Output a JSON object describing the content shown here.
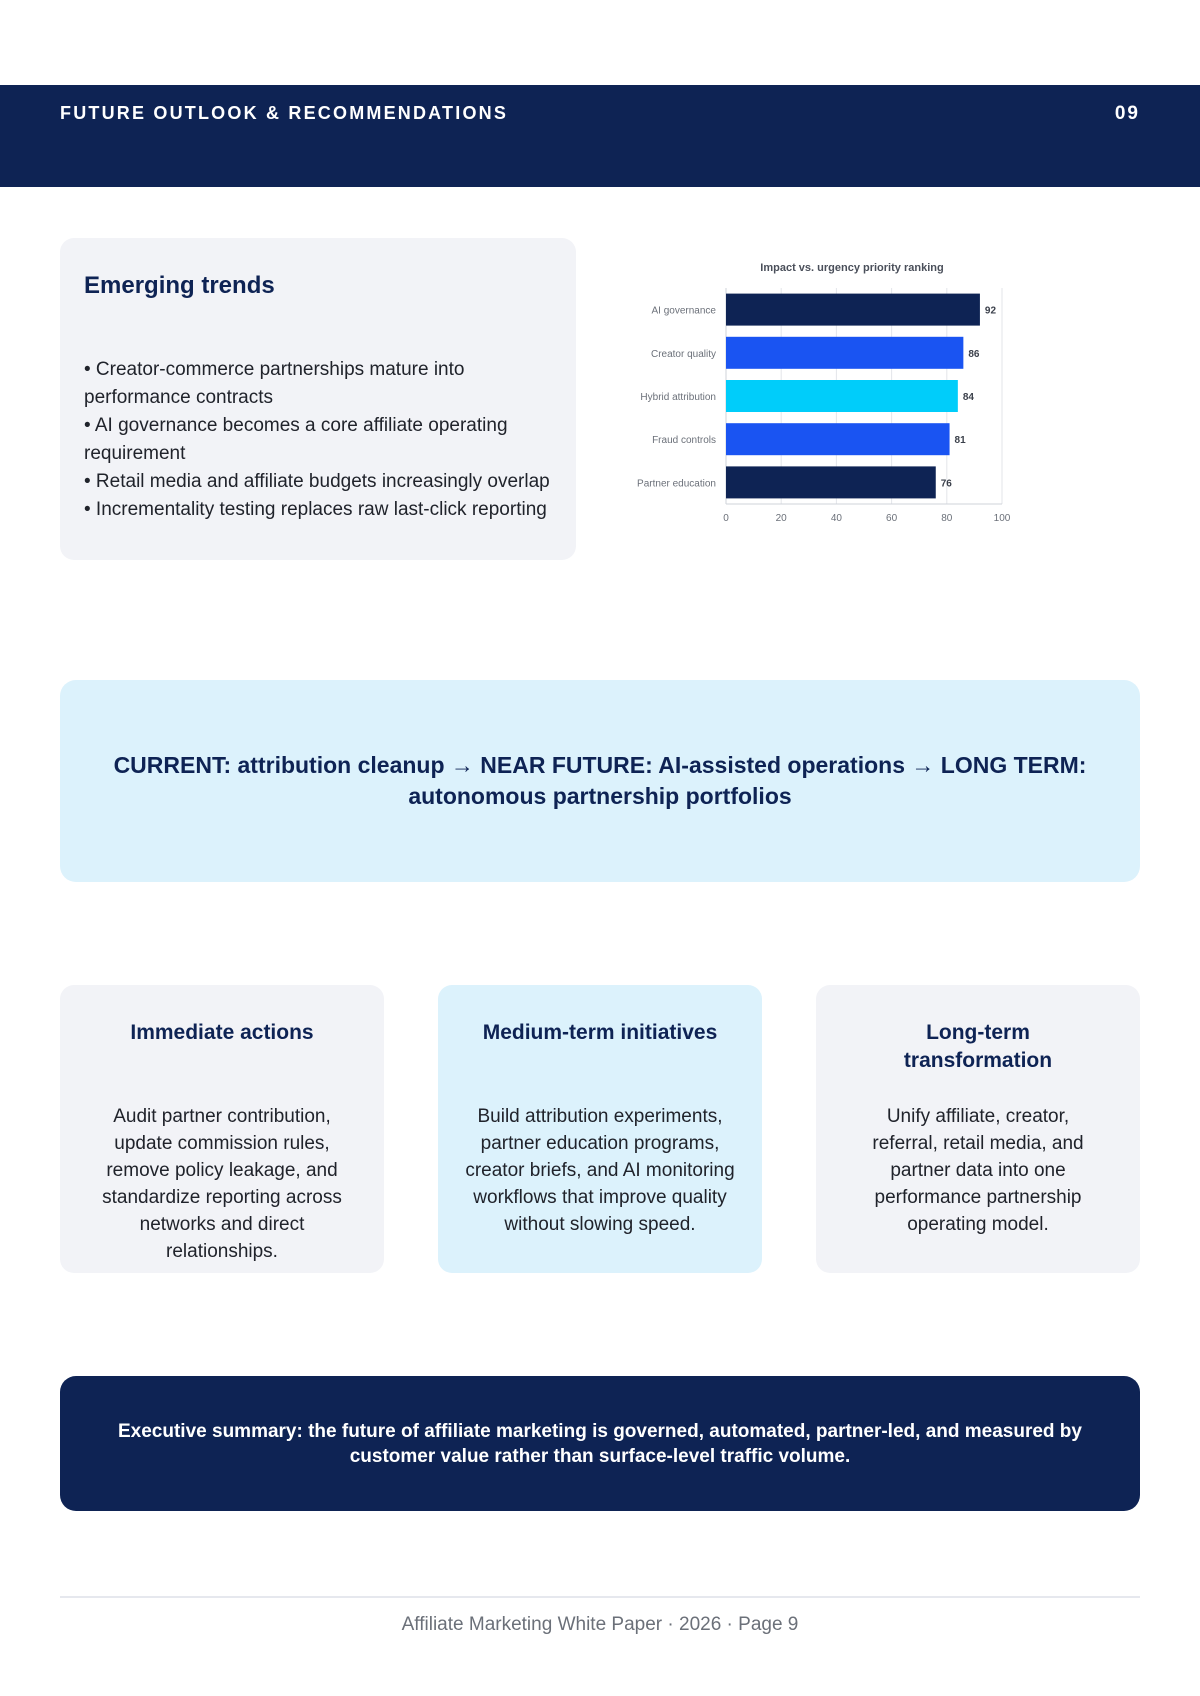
{
  "header": {
    "title": "FUTURE OUTLOOK & RECOMMENDATIONS",
    "page_number": "09"
  },
  "trends": {
    "heading": "Emerging trends",
    "items": [
      "• Creator-commerce partnerships mature into performance contracts",
      "• AI governance becomes a core affiliate operating requirement",
      "• Retail media and affiliate budgets increasingly overlap",
      "• Incrementality testing replaces raw last-click reporting"
    ]
  },
  "chart_data": {
    "type": "bar",
    "orientation": "horizontal",
    "title": "Impact vs. urgency priority ranking",
    "categories": [
      "AI governance",
      "Creator quality",
      "Hybrid attribution",
      "Fraud controls",
      "Partner education"
    ],
    "values": [
      92,
      86,
      84,
      81,
      76
    ],
    "colors": [
      "#0e2354",
      "#1a54f2",
      "#00cdfa",
      "#1a54f2",
      "#0e2354"
    ],
    "xlim": [
      0,
      100
    ],
    "xticks": [
      "0",
      "20",
      "40",
      "60",
      "80",
      "100"
    ],
    "grid": true,
    "data_labels": true
  },
  "timeline": {
    "text": "CURRENT: attribution cleanup → NEAR FUTURE: AI-assisted operations → LONG TERM: autonomous partnership portfolios"
  },
  "cards": [
    {
      "title": "Immediate actions",
      "body": "Audit partner contribution, update commission rules, remove policy leakage, and standardize reporting across networks and direct relationships."
    },
    {
      "title": "Medium-term initiatives",
      "body": "Build attribution experiments, partner education programs, creator briefs, and AI monitoring workflows that improve quality without slowing speed."
    },
    {
      "title": "Long-term transformation",
      "body": "Unify affiliate, creator, referral, retail media, and partner data into one performance partnership operating model."
    }
  ],
  "summary": {
    "text": "Executive summary: the future of affiliate marketing is governed, automated, partner-led, and measured by customer value rather than surface-level traffic volume."
  },
  "footer": {
    "text": "Affiliate Marketing White Paper · 2026 · Page 9"
  },
  "colors": {
    "navy": "#0e2354",
    "light_blue": "#dcf2fc",
    "light_gray": "#f2f3f7"
  }
}
